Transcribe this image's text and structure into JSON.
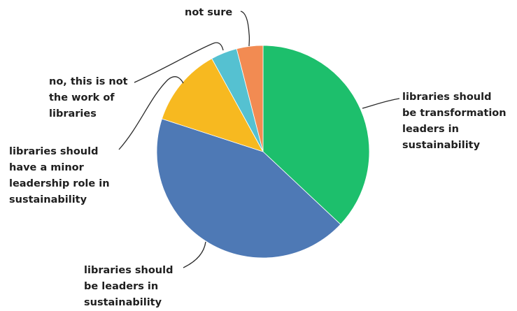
{
  "chart_data": {
    "type": "pie",
    "slices": [
      {
        "label": "libraries should be transformation leaders in sustainability",
        "value": 37,
        "color": "#1dbf6c"
      },
      {
        "label": "libraries should be leaders in sustainability",
        "value": 43,
        "color": "#4e79b5"
      },
      {
        "label": "libraries should have a minor leadership role in sustainability",
        "value": 12,
        "color": "#f7b920"
      },
      {
        "label": "no, this is not the work of libraries",
        "value": 4,
        "color": "#55c1d1"
      },
      {
        "label": "not sure",
        "value": 4,
        "color": "#f28b52"
      }
    ],
    "labels": [
      {
        "lines": [
          "libraries should",
          "be transformation",
          "leaders in",
          "sustainability"
        ]
      },
      {
        "lines": [
          "libraries should",
          "be leaders in",
          "sustainability"
        ]
      },
      {
        "lines": [
          "libraries should",
          "have a minor",
          "leadership role in",
          "sustainability"
        ]
      },
      {
        "lines": [
          "no, this is not",
          "the work of",
          "libraries"
        ]
      },
      {
        "lines": [
          "not sure"
        ]
      }
    ],
    "start": "12 o'clock",
    "direction": "clockwise",
    "legend": "none"
  }
}
